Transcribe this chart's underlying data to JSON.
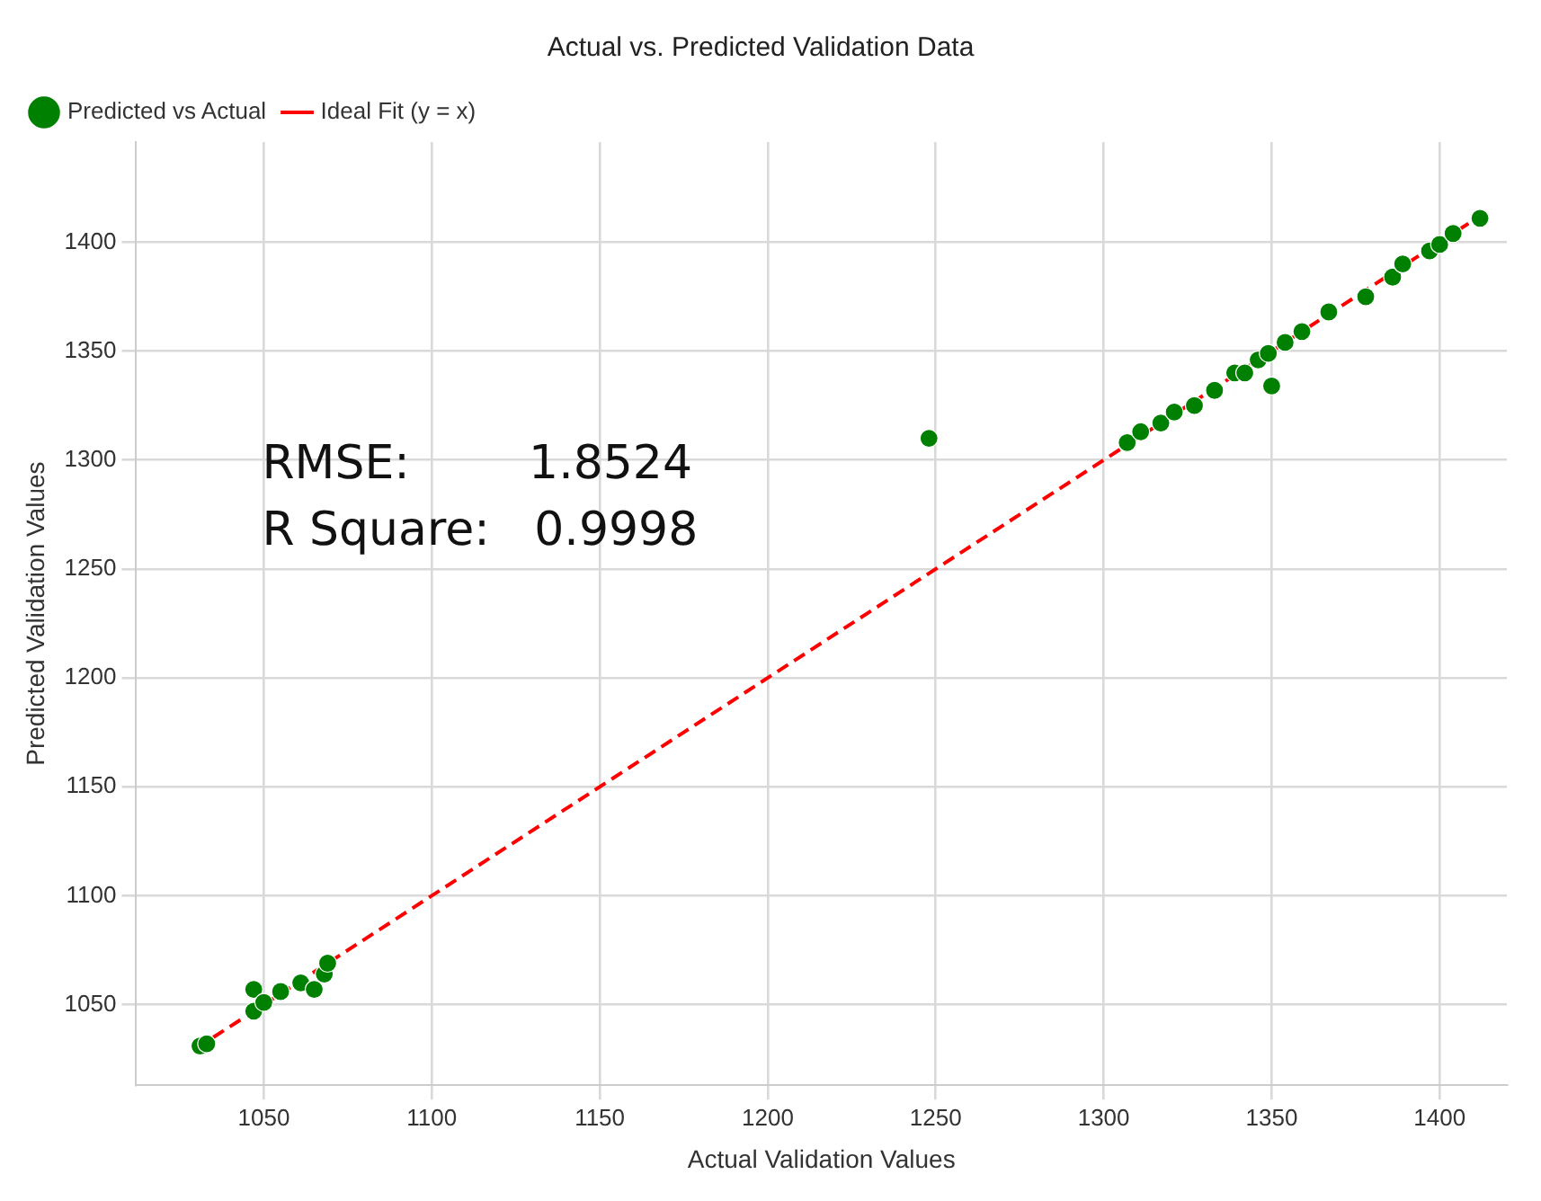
{
  "chart_data": {
    "type": "scatter",
    "title": "Actual vs. Predicted Validation Data",
    "xlabel": "Actual Validation Values",
    "ylabel": "Predicted Validation Values",
    "annotations": [
      "RMSE:        1.8524",
      "R Square:   0.9998"
    ],
    "xlim": [
      1012,
      1420
    ],
    "xticks": [
      1050,
      1100,
      1150,
      1200,
      1250,
      1300,
      1350,
      1400
    ],
    "ylim": [
      1013,
      1446
    ],
    "yticks": [
      1050,
      1100,
      1150,
      1200,
      1250,
      1300,
      1350,
      1400
    ],
    "grid": true,
    "legend": "top left",
    "series": [
      {
        "name": "Predicted vs Actual",
        "color": "#008000",
        "marker": "circle",
        "x": [
          1031,
          1033,
          1047,
          1047,
          1050,
          1055,
          1061,
          1065,
          1068,
          1069,
          1248,
          1307,
          1311,
          1317,
          1321,
          1327,
          1333,
          1339,
          1342,
          1346,
          1349,
          1350,
          1354,
          1359,
          1367,
          1378,
          1386,
          1389,
          1397,
          1400,
          1404,
          1412
        ],
        "values": [
          1031,
          1032,
          1057,
          1047,
          1051,
          1056,
          1060,
          1057,
          1064,
          1069,
          1310,
          1308,
          1313,
          1317,
          1322,
          1325,
          1332,
          1340,
          1340,
          1346,
          1349,
          1334,
          1354,
          1359,
          1368,
          1375,
          1384,
          1390,
          1396,
          1399,
          1404,
          1411
        ]
      },
      {
        "name": "Ideal Fit (y = x)",
        "type": "line",
        "color": "#ff0000",
        "line_style": "dashed",
        "marker": "none",
        "x": [
          1030,
          1412
        ],
        "values": [
          1030,
          1412
        ]
      }
    ]
  }
}
